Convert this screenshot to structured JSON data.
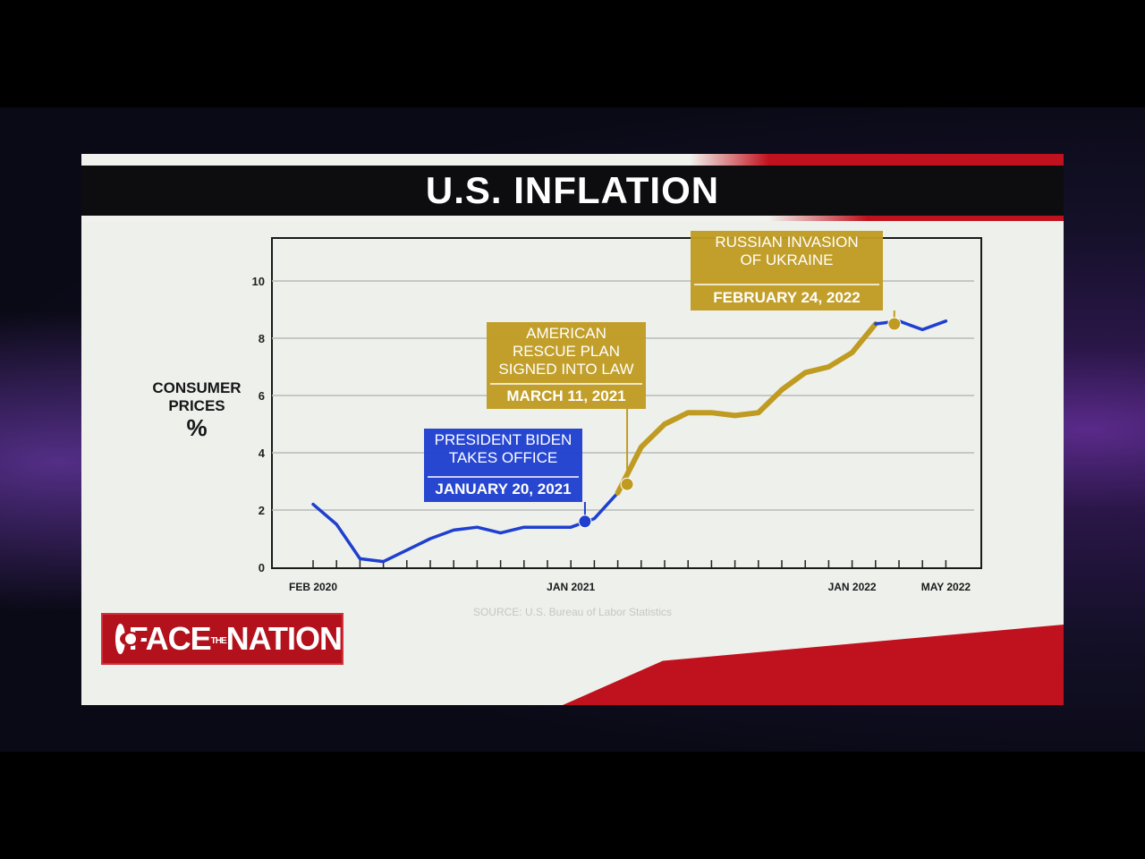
{
  "title": "U.S. INFLATION",
  "broadcast_logo": "FACE THE NATION",
  "source": "SOURCE: U.S. Bureau of Labor Statistics",
  "colors": {
    "before_biden": "#1f3fcf",
    "after_rescue": "#c09b22",
    "brand_red": "#c0121e",
    "callout_blue": "#1f3fcf",
    "callout_gold": "#c09b22"
  },
  "chart_data": {
    "type": "line",
    "title": "U.S. INFLATION",
    "ylabel": "CONSUMER PRICES %",
    "xlabel": "",
    "ylim": [
      0,
      11.5
    ],
    "yticks": [
      0,
      2,
      4,
      6,
      8,
      10
    ],
    "grid": true,
    "x_tick_labels": [
      {
        "label": "FEB 2020",
        "x": "2020-02"
      },
      {
        "label": "JAN 2021",
        "x": "2021-01"
      },
      {
        "label": "JAN 2022",
        "x": "2022-01"
      },
      {
        "label": "MAY 2022",
        "x": "2022-05"
      }
    ],
    "series": [
      {
        "color": "#1f3fcf",
        "x": [
          "2020-02",
          "2020-03",
          "2020-04",
          "2020-05",
          "2020-06",
          "2020-07",
          "2020-08",
          "2020-09",
          "2020-10",
          "2020-11",
          "2020-12",
          "2021-01",
          "2021-02",
          "2021-03"
        ],
        "y": [
          2.2,
          1.5,
          0.3,
          0.2,
          0.6,
          1.0,
          1.3,
          1.4,
          1.2,
          1.4,
          1.4,
          1.4,
          1.7,
          2.6
        ]
      },
      {
        "color": "#c09b22",
        "x": [
          "2021-03",
          "2021-04",
          "2021-05",
          "2021-06",
          "2021-07",
          "2021-08",
          "2021-09",
          "2021-10",
          "2021-11",
          "2021-12",
          "2022-01",
          "2022-02"
        ],
        "y": [
          2.6,
          4.2,
          5.0,
          5.4,
          5.4,
          5.3,
          5.4,
          6.2,
          6.8,
          7.0,
          7.5,
          8.5
        ]
      },
      {
        "color": "#1f3fcf",
        "x": [
          "2022-02",
          "2022-03",
          "2022-04",
          "2022-05"
        ],
        "y": [
          8.5,
          8.6,
          8.3,
          8.6
        ]
      }
    ],
    "annotations": [
      {
        "lines": [
          "PRESIDENT BIDEN",
          "TAKES OFFICE"
        ],
        "date": "JANUARY 20, 2021",
        "x": "2021-01.6",
        "y": 1.6,
        "style": "blue"
      },
      {
        "lines": [
          "AMERICAN",
          "RESCUE PLAN",
          "SIGNED INTO LAW"
        ],
        "date": "MARCH 11, 2021",
        "x": "2021-03.4",
        "y": 2.9,
        "style": "gold"
      },
      {
        "lines": [
          "RUSSIAN INVASION",
          "OF UKRAINE"
        ],
        "date": "FEBRUARY 24, 2022",
        "x": "2022-02.8",
        "y": 8.5,
        "style": "gold"
      }
    ]
  }
}
